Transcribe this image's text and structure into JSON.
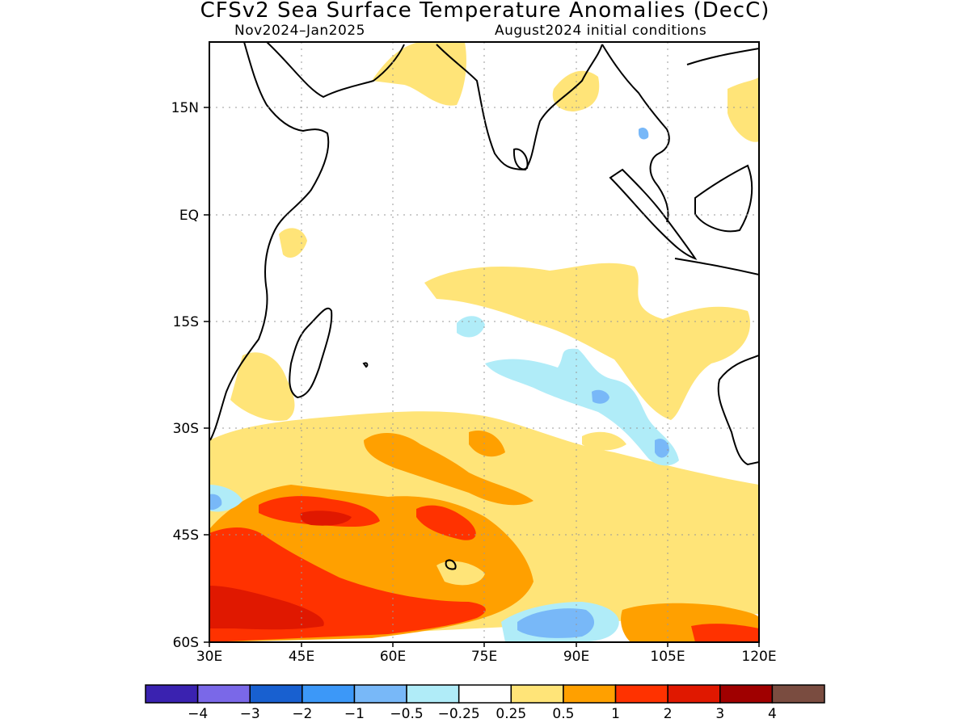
{
  "title": "CFSv2 Sea Surface Temperature Anomalies (DecC)",
  "period": "Nov2024–Jan2025",
  "initial_conditions": "August2024 initial conditions",
  "map": {
    "lon_range": [
      30,
      120
    ],
    "lat_range": [
      -60,
      24
    ],
    "lon_ticks": [
      "30E",
      "45E",
      "60E",
      "75E",
      "90E",
      "105E",
      "120E"
    ],
    "lat_ticks": [
      "15N",
      "EQ",
      "15S",
      "30S",
      "45S",
      "60S"
    ],
    "grid": "dotted"
  },
  "colorbar": {
    "colors": [
      "#3a22b0",
      "#7a68e8",
      "#1860d0",
      "#3c98f8",
      "#78b8f8",
      "#b0ecf8",
      "#ffffff",
      "#ffe478",
      "#ffa000",
      "#ff3200",
      "#e01800",
      "#a00000",
      "#7a4c40"
    ],
    "labels": [
      "−4",
      "−3",
      "−2",
      "−1",
      "−0.5",
      "−0.25",
      "0.25",
      "0.5",
      "1",
      "2",
      "3",
      "4"
    ]
  },
  "colors": {
    "pos_weak": "#ffe478",
    "pos_mod": "#ffa000",
    "pos_strong": "#ff3200",
    "pos_vstrong": "#e01800",
    "neg_weak": "#b0ecf8",
    "neg_mod": "#78b8f8"
  }
}
